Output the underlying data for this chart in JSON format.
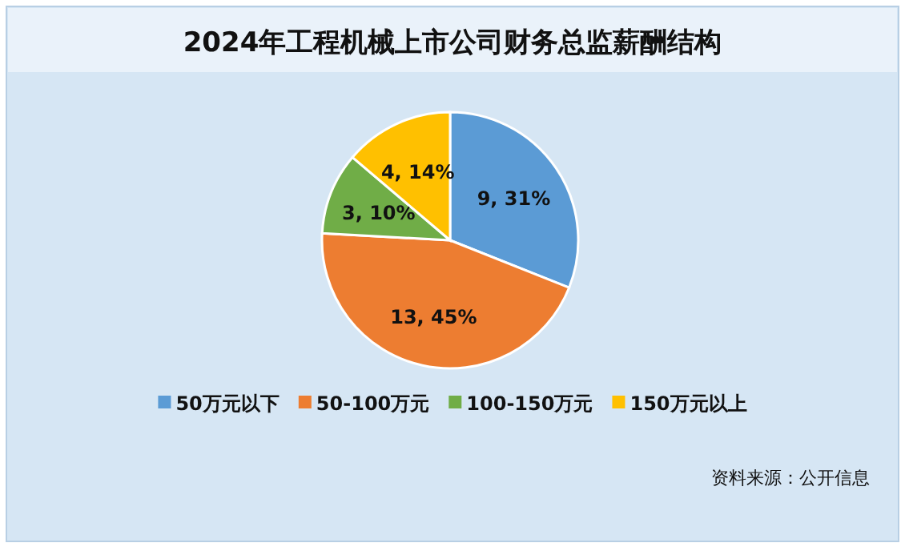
{
  "chart_data": {
    "type": "pie",
    "title": "2024年工程机械上市公司财务总监薪酬结构",
    "categories": [
      "50万元以下",
      "50-100万元",
      "100-150万元",
      "150万元以上"
    ],
    "values": [
      9,
      13,
      3,
      4
    ],
    "value_labels": [
      "9, 31%",
      "13, 45%",
      "3, 10%",
      "4, 14%"
    ],
    "colors": [
      "#5b9bd5",
      "#ed7d31",
      "#70ad47",
      "#ffc000"
    ],
    "legend": "bottom",
    "annotations": [
      "资料来源：公开信息"
    ]
  }
}
